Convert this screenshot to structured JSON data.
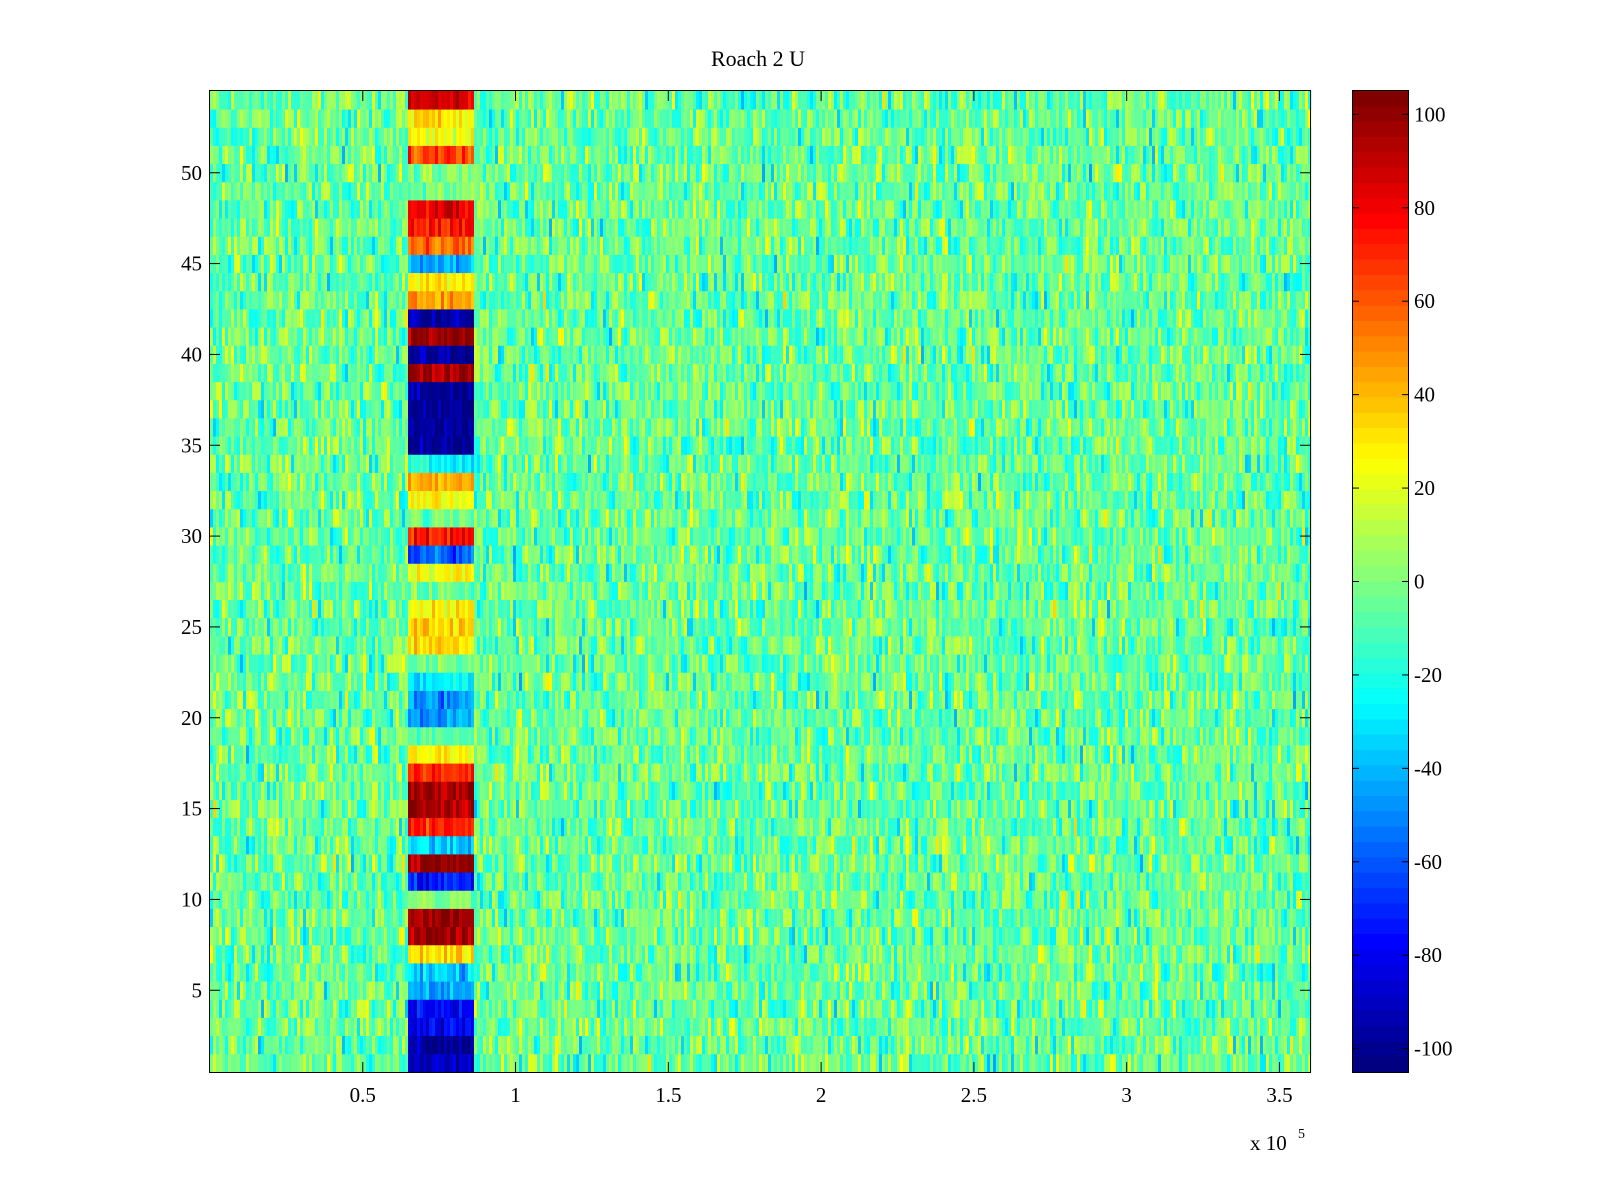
{
  "chart_data": {
    "type": "heatmap",
    "title": "Roach 2 U",
    "xlabel": "",
    "ylabel": "",
    "x_range": [
      0,
      360000
    ],
    "y_range": [
      0.5,
      54.5
    ],
    "x_multiplier_label": "x 10",
    "x_multiplier_exponent": "5",
    "x_ticks": [
      50000,
      100000,
      150000,
      200000,
      250000,
      300000,
      350000
    ],
    "x_tick_labels": [
      "0.5",
      "1",
      "1.5",
      "2",
      "2.5",
      "3",
      "3.5"
    ],
    "y_ticks": [
      5,
      10,
      15,
      20,
      25,
      30,
      35,
      40,
      45,
      50
    ],
    "y_tick_labels": [
      "5",
      "10",
      "15",
      "20",
      "25",
      "30",
      "35",
      "40",
      "45",
      "50"
    ],
    "rows": 54,
    "colormap": "jet",
    "color_range": [
      -105,
      105
    ],
    "colorbar_ticks": [
      -100,
      -80,
      -60,
      -40,
      -20,
      0,
      20,
      40,
      60,
      80,
      100
    ],
    "colorbar_tick_labels": [
      "-100",
      "-80",
      "-60",
      "-40",
      "-20",
      "0",
      "20",
      "40",
      "60",
      "80",
      "100"
    ],
    "background": {
      "mean": -5,
      "noise": 14
    },
    "band": {
      "x_range": [
        65000,
        86000
      ],
      "row_values": {
        "1": -95,
        "2": -100,
        "3": -85,
        "4": -80,
        "5": -45,
        "6": -40,
        "7": 35,
        "8": 100,
        "9": 100,
        "10": 0,
        "11": -75,
        "12": 100,
        "13": -35,
        "14": 75,
        "15": 100,
        "16": 100,
        "17": 70,
        "18": 30,
        "19": -5,
        "20": -45,
        "21": -50,
        "22": -30,
        "23": -5,
        "24": 35,
        "25": 35,
        "26": 30,
        "27": -5,
        "28": 25,
        "29": -60,
        "30": 75,
        "31": -5,
        "32": 25,
        "33": 45,
        "34": -25,
        "35": -100,
        "36": -100,
        "37": -100,
        "38": -100,
        "39": 100,
        "40": -100,
        "41": 100,
        "42": -100,
        "43": 45,
        "44": 30,
        "45": -40,
        "46": 55,
        "47": 75,
        "48": 85,
        "49": 0,
        "50": 0,
        "51": 65,
        "52": 25,
        "53": 30,
        "54": 90
      }
    }
  }
}
